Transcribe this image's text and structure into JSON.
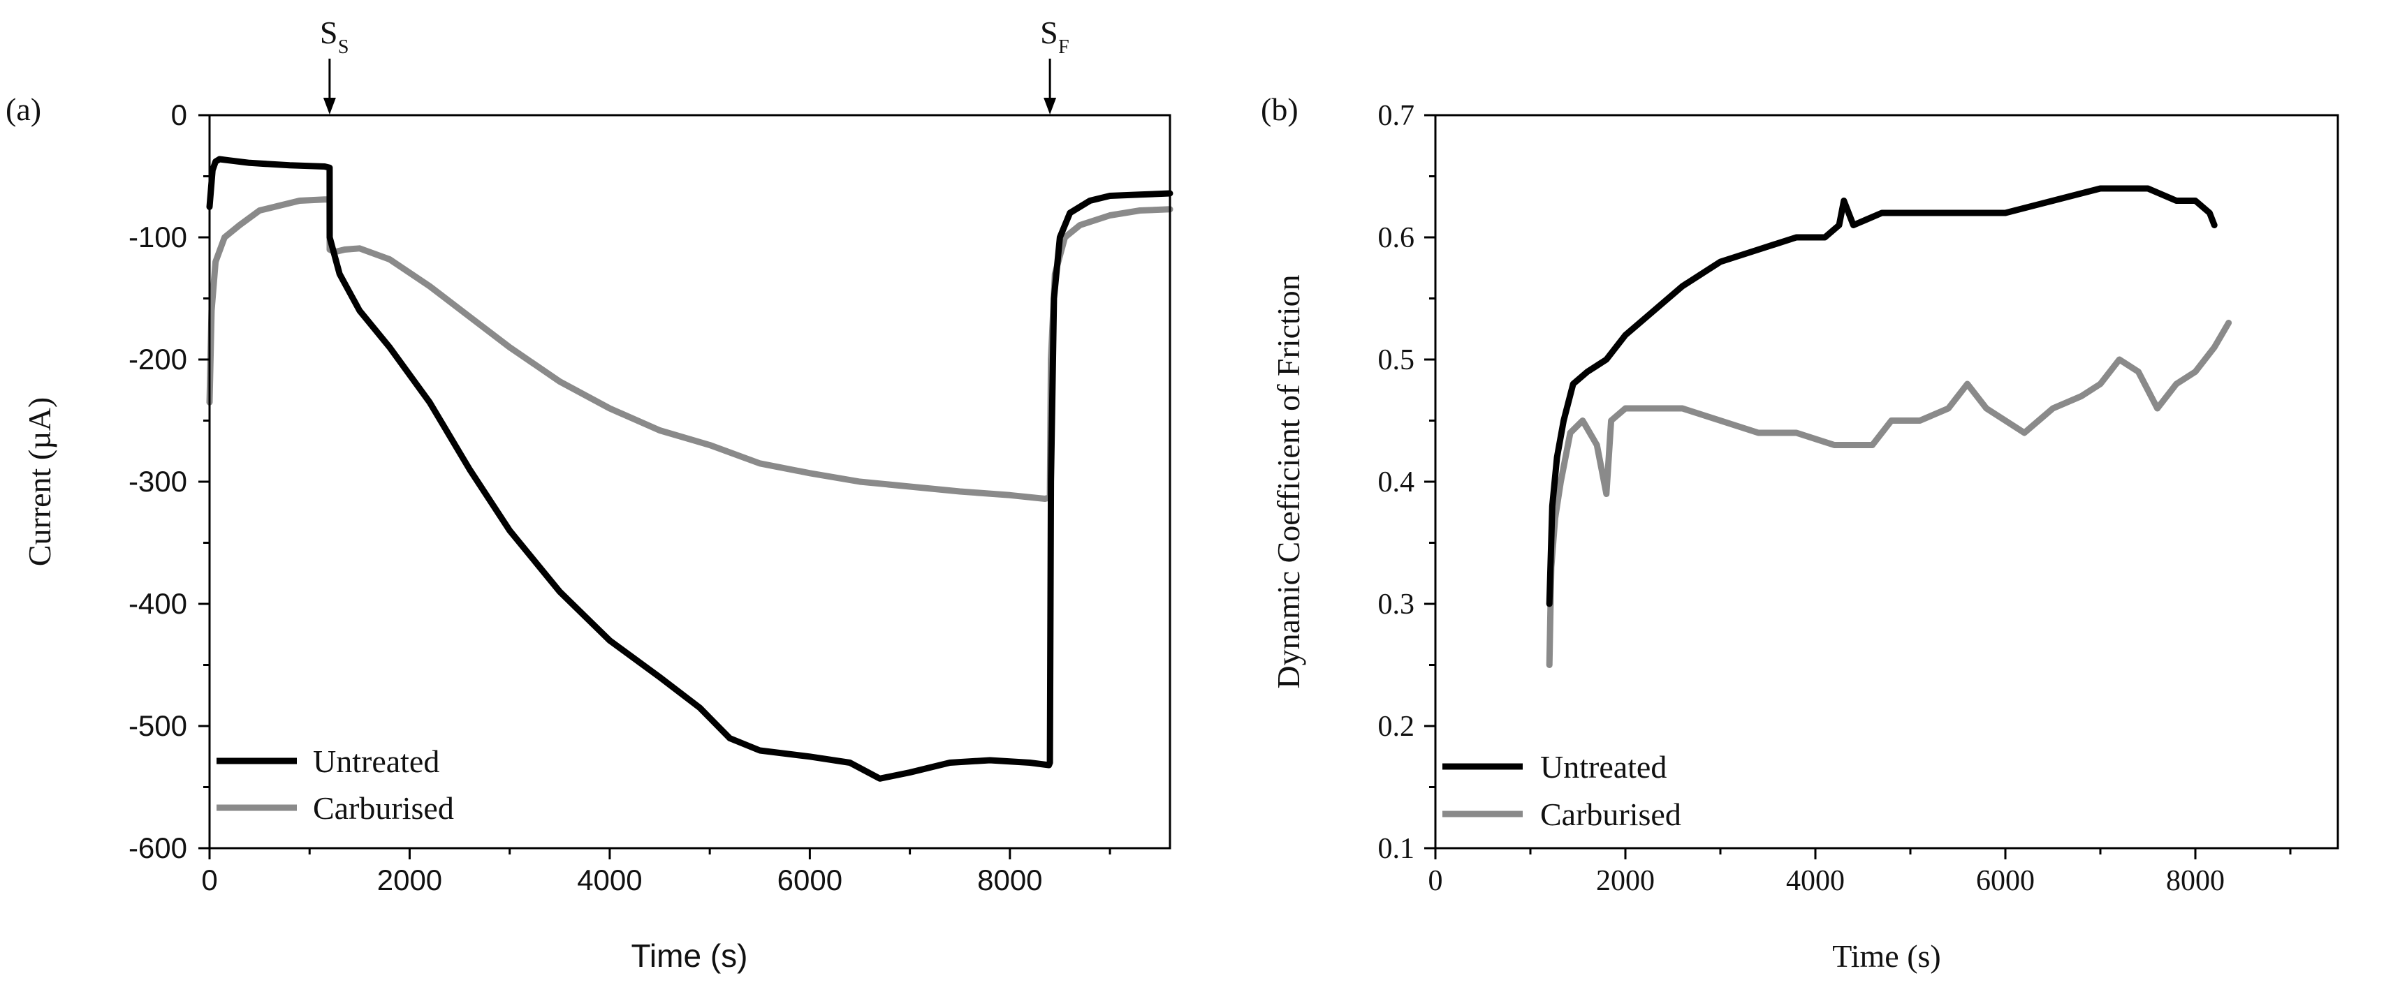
{
  "chart_data": [
    {
      "type": "line",
      "panel_label": "(a)",
      "title": "",
      "xlabel": "Time (s)",
      "ylabel": "Current (µA)",
      "xlim": [
        0,
        9600
      ],
      "ylim": [
        -600,
        0
      ],
      "xticks": [
        0,
        2000,
        4000,
        6000,
        8000
      ],
      "yticks": [
        0,
        -100,
        -200,
        -300,
        -400,
        -500,
        -600
      ],
      "xtick_labels": [
        "0",
        "2000",
        "4000",
        "6000",
        "8000"
      ],
      "ytick_labels": [
        "0",
        "-100",
        "-200",
        "-300",
        "-400",
        "-500",
        "-600"
      ],
      "grid": false,
      "legend_position": "bottom-left",
      "markers": [
        {
          "label": "S",
          "subscript": "S",
          "x": 1200
        },
        {
          "label": "S",
          "subscript": "F",
          "x": 8400
        }
      ],
      "series": [
        {
          "name": "Untreated",
          "color": "#000000",
          "x": [
            0,
            30,
            60,
            100,
            200,
            400,
            800,
            1150,
            1200,
            1201,
            1300,
            1500,
            1800,
            2200,
            2600,
            3000,
            3500,
            4000,
            4500,
            4900,
            5200,
            5500,
            6000,
            6400,
            6700,
            7000,
            7400,
            7800,
            8200,
            8390,
            8400,
            8410,
            8440,
            8500,
            8600,
            8800,
            9000,
            9300,
            9600
          ],
          "y": [
            -75,
            -45,
            -38,
            -36,
            -37,
            -39,
            -41,
            -42,
            -43,
            -100,
            -130,
            -160,
            -190,
            -235,
            -290,
            -340,
            -390,
            -430,
            -460,
            -485,
            -510,
            -520,
            -525,
            -530,
            -543,
            -538,
            -530,
            -528,
            -530,
            -532,
            -530,
            -300,
            -150,
            -100,
            -80,
            -70,
            -66,
            -65,
            -64
          ]
        },
        {
          "name": "Carburised",
          "color": "#8a8a8a",
          "x": [
            0,
            20,
            60,
            150,
            300,
            500,
            700,
            900,
            1150,
            1200,
            1201,
            1250,
            1350,
            1500,
            1800,
            2200,
            2600,
            3000,
            3500,
            4000,
            4500,
            5000,
            5500,
            6000,
            6500,
            7000,
            7500,
            8000,
            8350,
            8400,
            8410,
            8450,
            8550,
            8700,
            9000,
            9300,
            9600
          ],
          "y": [
            -235,
            -160,
            -120,
            -100,
            -90,
            -78,
            -74,
            -70,
            -69,
            -69,
            -110,
            -112,
            -110,
            -109,
            -118,
            -140,
            -165,
            -190,
            -218,
            -240,
            -258,
            -270,
            -285,
            -293,
            -300,
            -304,
            -308,
            -311,
            -314,
            -313,
            -200,
            -130,
            -100,
            -90,
            -82,
            -78,
            -77
          ]
        }
      ]
    },
    {
      "type": "line",
      "panel_label": "(b)",
      "title": "",
      "xlabel": "Time (s)",
      "ylabel": "Dynamic Coefficient of Friction",
      "xlim": [
        0,
        9500
      ],
      "ylim": [
        0.1,
        0.7
      ],
      "xticks": [
        0,
        2000,
        4000,
        6000,
        8000
      ],
      "yticks": [
        0.1,
        0.2,
        0.3,
        0.4,
        0.5,
        0.6,
        0.7
      ],
      "xtick_labels": [
        "0",
        "2000",
        "4000",
        "6000",
        "8000"
      ],
      "ytick_labels": [
        "0.1",
        "0.2",
        "0.3",
        "0.4",
        "0.5",
        "0.6",
        "0.7"
      ],
      "grid": false,
      "legend_position": "bottom-left",
      "series": [
        {
          "name": "Untreated",
          "color": "#000000",
          "x": [
            1200,
            1230,
            1280,
            1350,
            1450,
            1600,
            1800,
            2000,
            2300,
            2600,
            3000,
            3400,
            3800,
            4100,
            4250,
            4300,
            4400,
            4700,
            5000,
            5500,
            6000,
            6500,
            7000,
            7500,
            7800,
            8000,
            8150,
            8200
          ],
          "y": [
            0.3,
            0.38,
            0.42,
            0.45,
            0.48,
            0.49,
            0.5,
            0.52,
            0.54,
            0.56,
            0.58,
            0.59,
            0.6,
            0.6,
            0.61,
            0.63,
            0.61,
            0.62,
            0.62,
            0.62,
            0.62,
            0.63,
            0.64,
            0.64,
            0.63,
            0.63,
            0.62,
            0.61
          ]
        },
        {
          "name": "Carburised",
          "color": "#8a8a8a",
          "x": [
            1200,
            1220,
            1260,
            1320,
            1420,
            1550,
            1700,
            1800,
            1850,
            2000,
            2300,
            2600,
            3000,
            3400,
            3800,
            4200,
            4600,
            4800,
            5100,
            5400,
            5600,
            5800,
            6000,
            6200,
            6500,
            6800,
            7000,
            7200,
            7400,
            7600,
            7800,
            8000,
            8200,
            8350
          ],
          "y": [
            0.25,
            0.33,
            0.37,
            0.4,
            0.44,
            0.45,
            0.43,
            0.39,
            0.45,
            0.46,
            0.46,
            0.46,
            0.45,
            0.44,
            0.44,
            0.43,
            0.43,
            0.45,
            0.45,
            0.46,
            0.48,
            0.46,
            0.45,
            0.44,
            0.46,
            0.47,
            0.48,
            0.5,
            0.49,
            0.46,
            0.48,
            0.49,
            0.51,
            0.53
          ]
        }
      ]
    }
  ]
}
